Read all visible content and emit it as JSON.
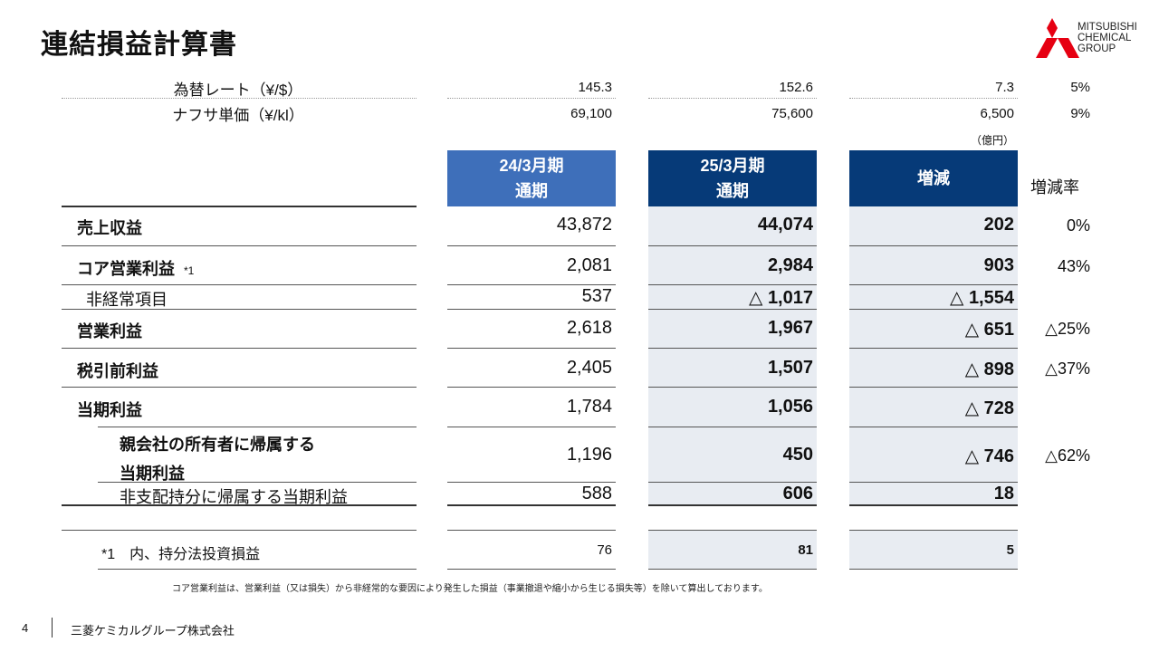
{
  "title": "連結損益計算書",
  "logo": {
    "lines": [
      "MITSUBISHI",
      "CHEMICAL",
      "GROUP"
    ]
  },
  "fx_rows": [
    {
      "label": "為替レート（¥/$）",
      "v1": "145.3",
      "v2": "152.6",
      "v3": "7.3",
      "pct": "5%"
    },
    {
      "label": "ナフサ単価（¥/kl）",
      "v1": "69,100",
      "v2": "75,600",
      "v3": "6,500",
      "pct": "9%"
    }
  ],
  "unit": "（億円）",
  "headers": {
    "col1_line1": "24/3月期",
    "col1_line2": "通期",
    "col2_line1": "25/3月期",
    "col2_line2": "通期",
    "col3": "増減",
    "col4": "増減率"
  },
  "rows": [
    {
      "label": "売上収益",
      "note": "",
      "v1": "43,872",
      "v2": "44,074",
      "v3": "202",
      "pct": "0%"
    },
    {
      "label": "コア営業利益",
      "note": "*1",
      "v1": "2,081",
      "v2": "2,984",
      "v3": "903",
      "pct": "43%"
    },
    {
      "label": "非経常項目",
      "note": "",
      "v1": "537",
      "v2": "△ 1,017",
      "v3": "△ 1,554",
      "pct": ""
    },
    {
      "label": "営業利益",
      "note": "",
      "v1": "2,618",
      "v2": "1,967",
      "v3": "△ 651",
      "pct": "△25%"
    },
    {
      "label": "税引前利益",
      "note": "",
      "v1": "2,405",
      "v2": "1,507",
      "v3": "△ 898",
      "pct": "△37%"
    },
    {
      "label": "当期利益",
      "note": "",
      "v1": "1,784",
      "v2": "1,056",
      "v3": "△ 728",
      "pct": ""
    },
    {
      "label_line1": "親会社の所有者に帰属する",
      "label_line2": "当期利益",
      "v1": "1,196",
      "v2": "450",
      "v3": "△ 746",
      "pct": "△62%"
    },
    {
      "label": "非支配持分に帰属する当期利益",
      "note": "",
      "v1": "588",
      "v2": "606",
      "v3": "18",
      "pct": ""
    }
  ],
  "sub_row": {
    "label": "*1　内、持分法投資損益",
    "v1": "76",
    "v2": "81",
    "v3": "5"
  },
  "footnote": "コア営業利益は、営業利益（又は損失）から非経常的な要因により発生した損益（事業撤退や縮小から生じる損失等）を除いて算出しております。",
  "page_number": "4",
  "company": "三菱ケミカルグループ株式会社"
}
